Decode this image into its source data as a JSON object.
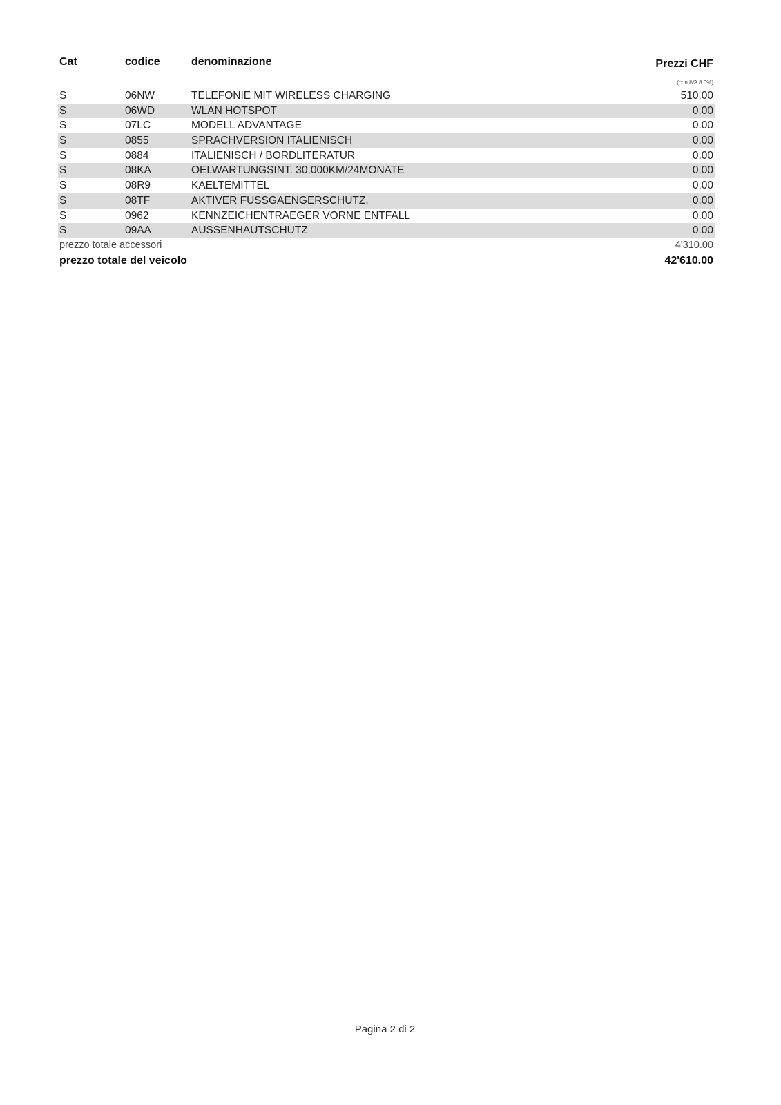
{
  "header": {
    "cat": "Cat",
    "codice": "codice",
    "denominazione": "denominazione",
    "prezzi": "Prezzi CHF",
    "note": "(con IVA 8.0%)"
  },
  "rows": [
    {
      "cat": "S",
      "codice": "06NW",
      "denominazione": "TELEFONIE MIT WIRELESS CHARGING",
      "prezzo": "510.00"
    },
    {
      "cat": "S",
      "codice": "06WD",
      "denominazione": "WLAN HOTSPOT",
      "prezzo": "0.00"
    },
    {
      "cat": "S",
      "codice": "07LC",
      "denominazione": "MODELL ADVANTAGE",
      "prezzo": "0.00"
    },
    {
      "cat": "S",
      "codice": "0855",
      "denominazione": "SPRACHVERSION ITALIENISCH",
      "prezzo": "0.00"
    },
    {
      "cat": "S",
      "codice": "0884",
      "denominazione": "ITALIENISCH / BORDLITERATUR",
      "prezzo": "0.00"
    },
    {
      "cat": "S",
      "codice": "08KA",
      "denominazione": "OELWARTUNGSINT. 30.000KM/24MONATE",
      "prezzo": "0.00"
    },
    {
      "cat": "S",
      "codice": "08R9",
      "denominazione": "KAELTEMITTEL",
      "prezzo": "0.00"
    },
    {
      "cat": "S",
      "codice": "08TF",
      "denominazione": "AKTIVER FUSSGAENGERSCHUTZ.",
      "prezzo": "0.00"
    },
    {
      "cat": "S",
      "codice": "0962",
      "denominazione": "KENNZEICHENTRAEGER VORNE ENTFALL",
      "prezzo": "0.00"
    },
    {
      "cat": "S",
      "codice": "09AA",
      "denominazione": "AUSSENHAUTSCHUTZ",
      "prezzo": "0.00"
    }
  ],
  "totals": {
    "accessori_label": "prezzo totale accessori",
    "accessori_value": "4'310.00",
    "veicolo_label": "prezzo totale del veicolo",
    "veicolo_value": "42'610.00"
  },
  "footer": {
    "page": "Pagina 2 di 2"
  }
}
